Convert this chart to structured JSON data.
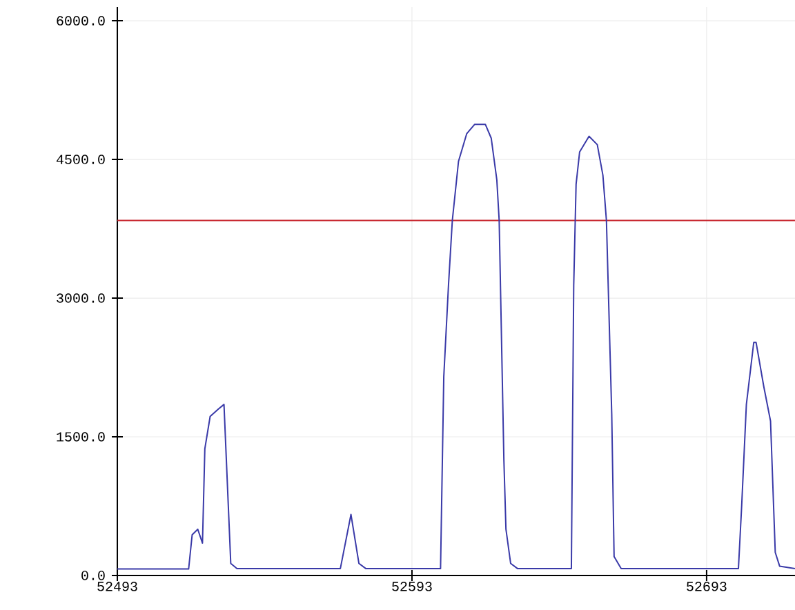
{
  "chart_data": {
    "type": "line",
    "grid": true,
    "marker": "none",
    "line_style": "solid",
    "xlim": [
      52493,
      52723
    ],
    "ylim": [
      0,
      6150
    ],
    "xticks": [
      52493,
      52593,
      52693
    ],
    "yticks": [
      {
        "value": 0,
        "label": "0.0"
      },
      {
        "value": 1500,
        "label": "1500.0"
      },
      {
        "value": 3000,
        "label": "3000.0"
      },
      {
        "value": 4500,
        "label": "4500.0"
      },
      {
        "value": 6000,
        "label": "6000.0"
      }
    ],
    "ref_lines": [
      {
        "axis": "y",
        "value": 3840,
        "color": "#c8262e"
      }
    ],
    "series": [
      {
        "color": "#3a3aa8",
        "x": [
          52493,
          52517.2,
          52518.4,
          52520.3,
          52521.9,
          52522.7,
          52524.5,
          52527.3,
          52529.2,
          52531.5,
          52533.6,
          52568.7,
          52572.3,
          52575.0,
          52577.3,
          52602.7,
          52603.8,
          52605.4,
          52606.7,
          52608.8,
          52611.6,
          52614.3,
          52617.9,
          52619.9,
          52621.8,
          52622.6,
          52624.2,
          52624.9,
          52626.5,
          52628.8,
          52647.1,
          52647.9,
          52648.7,
          52649.9,
          52653.1,
          52655.9,
          52657.8,
          52659.0,
          52660.8,
          52661.6,
          52664.0,
          52703.8,
          52704.9,
          52706.5,
          52709.0,
          52709.8,
          52712.4,
          52714.7,
          52716.3,
          52717.8,
          52723
        ],
        "values": [
          70,
          70,
          440,
          500,
          350,
          1370,
          1720,
          1800,
          1850,
          130,
          75,
          75,
          660,
          130,
          75,
          75,
          2150,
          3140,
          3840,
          4480,
          4780,
          4880,
          4880,
          4730,
          4280,
          3840,
          1250,
          500,
          130,
          75,
          75,
          3140,
          4230,
          4580,
          4750,
          4660,
          4330,
          3840,
          1750,
          205,
          75,
          75,
          750,
          1850,
          2520,
          2520,
          2045,
          1670,
          250,
          100,
          75
        ]
      }
    ]
  }
}
